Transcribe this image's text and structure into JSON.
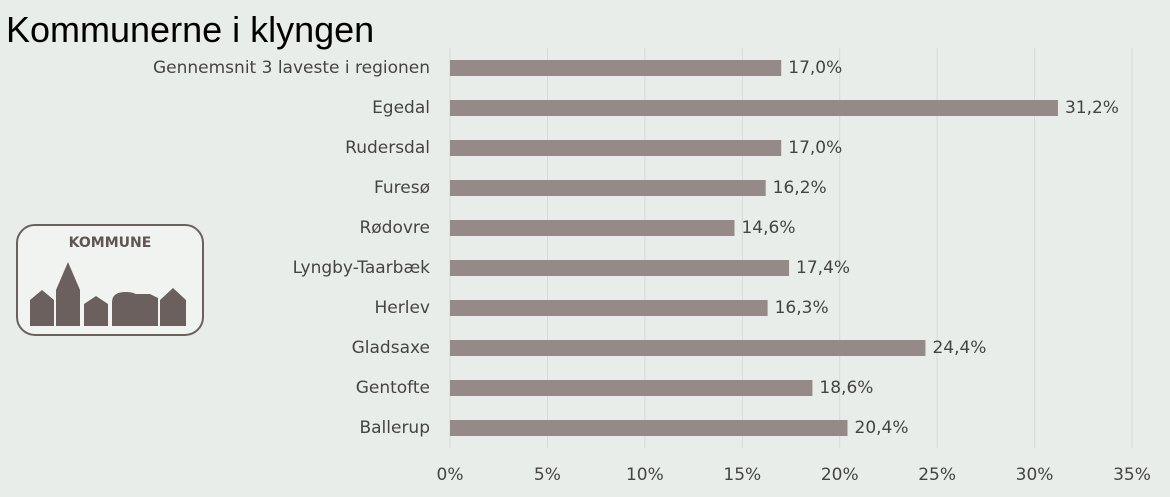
{
  "chart_data": {
    "type": "barh",
    "title": "Kommunerne i klyngen",
    "categories": [
      "Gennemsnit 3 laveste i regionen",
      "Egedal",
      "Rudersdal",
      "Furesø",
      "Rødovre",
      "Lyngby-Taarbæk",
      "Herlev",
      "Gladsaxe",
      "Gentofte",
      "Ballerup"
    ],
    "values": [
      17.0,
      31.2,
      17.0,
      16.2,
      14.6,
      17.4,
      16.3,
      24.4,
      18.6,
      20.4
    ],
    "value_labels": [
      "17,0%",
      "31,2%",
      "17,0%",
      "16,2%",
      "14,6%",
      "17,4%",
      "16,3%",
      "24,4%",
      "18,6%",
      "20,4%"
    ],
    "color": "#958a87",
    "xlim": [
      0,
      35
    ],
    "xticks": [
      {
        "value": 0,
        "label": "0%"
      },
      {
        "value": 5,
        "label": "5%"
      },
      {
        "value": 10,
        "label": "10%"
      },
      {
        "value": 15,
        "label": "15%"
      },
      {
        "value": 20,
        "label": "20%"
      },
      {
        "value": 25,
        "label": "25%"
      },
      {
        "value": 30,
        "label": "30%"
      },
      {
        "value": 35,
        "label": "35%"
      }
    ],
    "grid": true
  },
  "logo": {
    "text": "KOMMUNE"
  }
}
